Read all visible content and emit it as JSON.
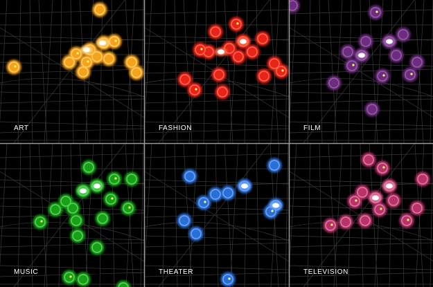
{
  "panels": [
    {
      "label": "ART"
    },
    {
      "label": "FASHION"
    },
    {
      "label": "FILM"
    },
    {
      "label": "MUSIC"
    },
    {
      "label": "THEATER"
    },
    {
      "label": "TELEVISION"
    }
  ]
}
